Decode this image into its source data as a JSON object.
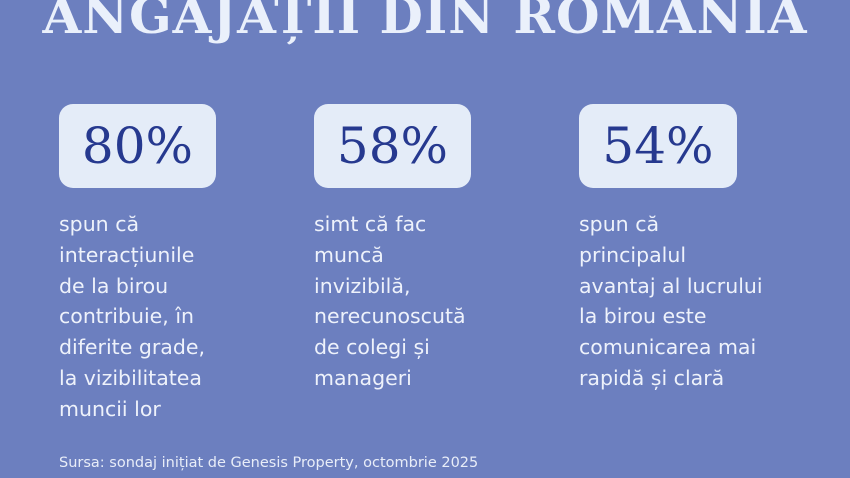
{
  "title": "ANGAJAȚII DIN ROMÂNIA",
  "stats": [
    {
      "value": "80%",
      "description": "spun că\ninteracțiunile\nde la birou\ncontribuie, în\ndiferite grade,\nla vizibilitatea\nmuncii lor"
    },
    {
      "value": "58%",
      "description": "simt că fac\nmuncă\ninvizibilă,\nnerecunoscută\nde colegi și\nmanageri"
    },
    {
      "value": "54%",
      "description": "spun că\nprincipalul\navantaj al lucrului\nla birou este\ncomunicarea mai\nrapidă și clară"
    }
  ],
  "source": "Sursa: sondaj inițiat de Genesis Property, octombrie 2025",
  "colors": {
    "background": "#6c7fbf",
    "badge": "#e4ecf8",
    "badge_text": "#26398f",
    "text": "#eef2fb"
  }
}
